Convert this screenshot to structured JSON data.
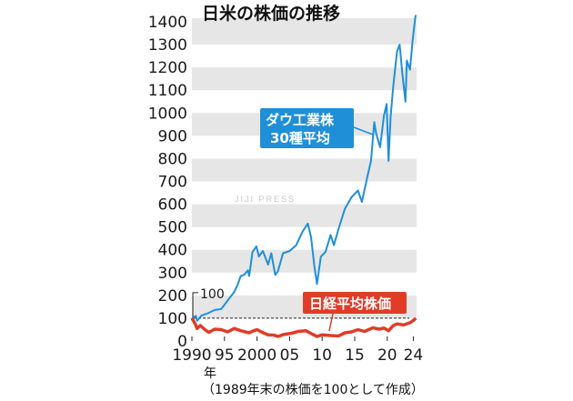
{
  "chart_data": {
    "type": "line",
    "title": "日米の株価の推移",
    "note": "（1989年末の株価を100として作成）",
    "watermark": "JIJI PRESS",
    "x_unit_label": "年",
    "xlim": [
      1990,
      2024.5
    ],
    "ylim": [
      0,
      1430
    ],
    "y_ticks": [
      0,
      100,
      200,
      300,
      400,
      500,
      600,
      700,
      800,
      900,
      1000,
      1100,
      1200,
      1300,
      1400
    ],
    "x_ticks": [
      {
        "year": 1990,
        "label": "1990"
      },
      {
        "year": 1995,
        "label": "95"
      },
      {
        "year": 2000,
        "label": "2000"
      },
      {
        "year": 2005,
        "label": "05"
      },
      {
        "year": 2010,
        "label": "10"
      },
      {
        "year": 2015,
        "label": "15"
      },
      {
        "year": 2020,
        "label": "20"
      },
      {
        "year": 2024,
        "label": "24"
      }
    ],
    "reference_line": {
      "y": 100,
      "label": "100"
    },
    "series": [
      {
        "name": "ダウ工業株30種平均",
        "name_lines": [
          "ダウ工業株",
          "30種平均"
        ],
        "color": "#1f8fd8",
        "points": [
          [
            1990.0,
            100
          ],
          [
            1990.6,
            110
          ],
          [
            1990.8,
            88
          ],
          [
            1991.5,
            112
          ],
          [
            1992.5,
            122
          ],
          [
            1993.5,
            136
          ],
          [
            1994.5,
            140
          ],
          [
            1995.5,
            178
          ],
          [
            1996.5,
            215
          ],
          [
            1997.0,
            245
          ],
          [
            1997.5,
            285
          ],
          [
            1998.0,
            290
          ],
          [
            1998.6,
            310
          ],
          [
            1998.8,
            285
          ],
          [
            1999.3,
            390
          ],
          [
            1999.9,
            415
          ],
          [
            2000.3,
            370
          ],
          [
            2000.9,
            395
          ],
          [
            2001.7,
            335
          ],
          [
            2002.2,
            385
          ],
          [
            2002.8,
            290
          ],
          [
            2003.2,
            305
          ],
          [
            2004.0,
            385
          ],
          [
            2005.0,
            395
          ],
          [
            2006.0,
            420
          ],
          [
            2007.0,
            480
          ],
          [
            2007.8,
            515
          ],
          [
            2008.3,
            455
          ],
          [
            2008.8,
            330
          ],
          [
            2009.2,
            250
          ],
          [
            2009.8,
            370
          ],
          [
            2010.5,
            390
          ],
          [
            2011.3,
            465
          ],
          [
            2011.8,
            420
          ],
          [
            2012.5,
            490
          ],
          [
            2013.5,
            580
          ],
          [
            2014.5,
            630
          ],
          [
            2015.5,
            660
          ],
          [
            2016.1,
            610
          ],
          [
            2016.9,
            715
          ],
          [
            2017.5,
            790
          ],
          [
            2018.0,
            960
          ],
          [
            2018.3,
            910
          ],
          [
            2018.9,
            850
          ],
          [
            2019.5,
            990
          ],
          [
            2019.9,
            1040
          ],
          [
            2020.2,
            790
          ],
          [
            2020.5,
            980
          ],
          [
            2020.9,
            1110
          ],
          [
            2021.5,
            1270
          ],
          [
            2021.9,
            1300
          ],
          [
            2022.3,
            1180
          ],
          [
            2022.8,
            1050
          ],
          [
            2023.0,
            1230
          ],
          [
            2023.5,
            1190
          ],
          [
            2023.9,
            1320
          ],
          [
            2024.3,
            1420
          ],
          [
            2024.4,
            1430
          ]
        ]
      },
      {
        "name": "日経平均株価",
        "color": "#e03c28",
        "points": [
          [
            1990.0,
            100
          ],
          [
            1990.5,
            75
          ],
          [
            1990.8,
            55
          ],
          [
            1991.3,
            68
          ],
          [
            1992.0,
            50
          ],
          [
            1992.6,
            38
          ],
          [
            1993.5,
            52
          ],
          [
            1994.5,
            50
          ],
          [
            1995.5,
            40
          ],
          [
            1996.5,
            55
          ],
          [
            1997.5,
            45
          ],
          [
            1998.8,
            36
          ],
          [
            1999.5,
            45
          ],
          [
            2000.0,
            50
          ],
          [
            2000.8,
            38
          ],
          [
            2001.7,
            27
          ],
          [
            2002.5,
            26
          ],
          [
            2003.3,
            20
          ],
          [
            2004.0,
            28
          ],
          [
            2005.5,
            35
          ],
          [
            2006.3,
            42
          ],
          [
            2007.5,
            45
          ],
          [
            2008.5,
            30
          ],
          [
            2009.2,
            20
          ],
          [
            2010.0,
            27
          ],
          [
            2011.3,
            24
          ],
          [
            2012.5,
            22
          ],
          [
            2013.5,
            36
          ],
          [
            2014.5,
            40
          ],
          [
            2015.5,
            50
          ],
          [
            2016.5,
            42
          ],
          [
            2017.8,
            58
          ],
          [
            2018.8,
            52
          ],
          [
            2019.5,
            57
          ],
          [
            2020.2,
            45
          ],
          [
            2020.9,
            67
          ],
          [
            2021.5,
            75
          ],
          [
            2022.5,
            70
          ],
          [
            2023.5,
            80
          ],
          [
            2024.0,
            90
          ],
          [
            2024.4,
            100
          ]
        ]
      }
    ]
  }
}
